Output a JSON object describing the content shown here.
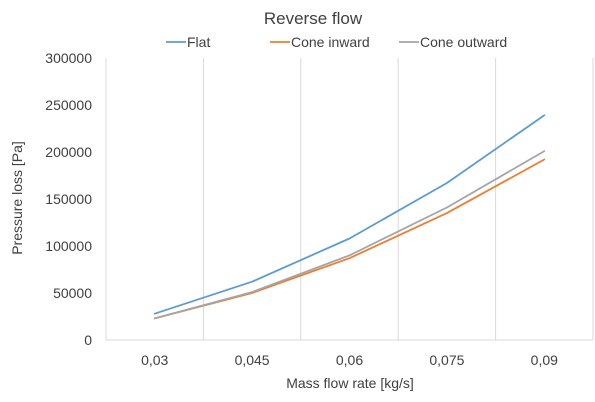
{
  "chart_data": {
    "type": "line",
    "title": "Reverse flow",
    "xlabel": "Mass flow rate [kg/s]",
    "ylabel": "Pressure loss [Pa]",
    "categories": [
      "0,03",
      "0,045",
      "0,06",
      "0,075",
      "0,09"
    ],
    "ylim": [
      0,
      300000
    ],
    "yticks": [
      "0",
      "50000",
      "100000",
      "150000",
      "200000",
      "250000",
      "300000"
    ],
    "grid": "vertical",
    "legend_position": "top",
    "series": [
      {
        "name": "Flat",
        "color": "#5b9bd5",
        "values": [
          28000,
          62000,
          108000,
          167000,
          239000
        ]
      },
      {
        "name": "Cone inward",
        "color": "#ed7d31",
        "values": [
          23000,
          50000,
          87000,
          135000,
          192000
        ]
      },
      {
        "name": "Cone outward",
        "color": "#a5a5a5",
        "values": [
          23000,
          51000,
          90000,
          141000,
          201000
        ]
      }
    ]
  }
}
